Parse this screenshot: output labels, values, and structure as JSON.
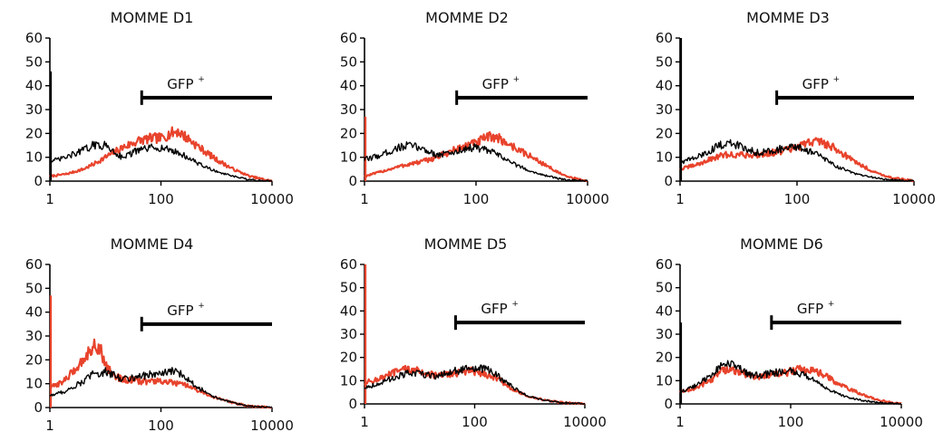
{
  "colors": {
    "control": "#000000",
    "momme": "#e8432c",
    "axis": "#000000"
  },
  "gate_label": {
    "text": "GFP",
    "sup": "+"
  },
  "chart_data": [
    {
      "type": "line",
      "title": "MOMME D1",
      "xscale": "log",
      "xticks": [
        "1",
        "100",
        "10000"
      ],
      "yticks": [
        "0",
        "10",
        "20",
        "30",
        "40",
        "50",
        "60"
      ],
      "xlim": [
        1,
        10000
      ],
      "ylim": [
        0,
        60
      ],
      "gate": [
        45,
        10000
      ],
      "series": [
        {
          "color": "black",
          "x": [
            1,
            2,
            4,
            6,
            10,
            20,
            40,
            70,
            100,
            150,
            200,
            300,
            500,
            1000,
            2000,
            4000,
            10000
          ],
          "y": [
            8,
            10,
            13,
            15,
            15,
            10,
            13,
            14,
            14,
            13,
            12,
            10,
            7,
            4,
            2,
            0.5,
            0
          ],
          "start_spike": 46
        },
        {
          "color": "red",
          "x": [
            1,
            2,
            4,
            6,
            10,
            20,
            40,
            70,
            100,
            150,
            200,
            300,
            500,
            1000,
            2000,
            4000,
            10000
          ],
          "y": [
            2,
            3,
            5,
            7,
            10,
            14,
            17,
            18,
            18,
            20,
            21,
            18,
            14,
            9,
            5,
            2,
            0
          ],
          "start_spike": 0
        }
      ]
    },
    {
      "type": "line",
      "title": "MOMME D2",
      "xscale": "log",
      "xticks": [
        "1",
        "100",
        "10000"
      ],
      "yticks": [
        "0",
        "10",
        "20",
        "30",
        "40",
        "50",
        "60"
      ],
      "xlim": [
        1,
        10000
      ],
      "ylim": [
        0,
        60
      ],
      "gate": [
        45,
        10000
      ],
      "series": [
        {
          "color": "black",
          "x": [
            1,
            2,
            4,
            6,
            10,
            20,
            40,
            70,
            100,
            150,
            200,
            300,
            500,
            1000,
            2000,
            4000,
            10000
          ],
          "y": [
            9,
            11,
            14,
            15,
            14,
            11,
            12,
            14,
            14,
            13,
            12,
            10,
            7,
            4,
            2,
            0.5,
            0
          ],
          "start_spike": 0
        },
        {
          "color": "red",
          "x": [
            1,
            2,
            4,
            6,
            10,
            20,
            40,
            70,
            100,
            150,
            200,
            300,
            500,
            1000,
            2000,
            4000,
            10000
          ],
          "y": [
            2,
            4,
            6,
            7,
            8,
            10,
            13,
            15,
            16,
            18,
            19,
            17,
            14,
            10,
            6,
            2,
            0
          ],
          "start_spike": 27
        }
      ]
    },
    {
      "type": "line",
      "title": "MOMME D3",
      "xscale": "log",
      "xticks": [
        "1",
        "100",
        "10000"
      ],
      "yticks": [
        "0",
        "10",
        "20",
        "30",
        "40",
        "50",
        "60"
      ],
      "xlim": [
        1,
        10000
      ],
      "ylim": [
        0,
        60
      ],
      "gate": [
        45,
        10000
      ],
      "series": [
        {
          "color": "black",
          "x": [
            1,
            2,
            4,
            6,
            10,
            20,
            40,
            70,
            100,
            150,
            200,
            300,
            500,
            1000,
            2000,
            4000,
            10000
          ],
          "y": [
            8,
            10,
            14,
            16,
            15,
            12,
            13,
            14,
            14,
            13,
            12,
            9,
            6,
            3,
            1.5,
            0.5,
            0
          ],
          "start_spike": 60
        },
        {
          "color": "red",
          "x": [
            1,
            2,
            4,
            6,
            10,
            20,
            40,
            70,
            100,
            150,
            200,
            300,
            500,
            1000,
            2000,
            4000,
            10000
          ],
          "y": [
            5,
            7,
            10,
            11,
            11,
            11,
            12,
            13,
            14,
            16,
            17,
            16,
            13,
            8,
            4,
            1.5,
            0
          ],
          "start_spike": 0
        }
      ]
    },
    {
      "type": "line",
      "title": "MOMME D4",
      "xscale": "log",
      "xticks": [
        "1",
        "100",
        "10000"
      ],
      "yticks": [
        "0",
        "10",
        "20",
        "30",
        "40",
        "50",
        "60"
      ],
      "xlim": [
        1,
        10000
      ],
      "ylim": [
        0,
        60
      ],
      "gate": [
        45,
        10000
      ],
      "series": [
        {
          "color": "black",
          "x": [
            1,
            2,
            4,
            6,
            10,
            20,
            40,
            70,
            100,
            150,
            200,
            300,
            500,
            1000,
            2000,
            4000,
            10000
          ],
          "y": [
            5,
            7,
            11,
            14,
            15,
            12,
            13,
            14,
            14,
            15,
            15,
            12,
            8,
            4,
            2,
            0.5,
            0
          ],
          "start_spike": 0
        },
        {
          "color": "red",
          "x": [
            1,
            2,
            4,
            6,
            8,
            10,
            15,
            20,
            40,
            70,
            100,
            200,
            300,
            500,
            1000,
            2000,
            4000,
            10000
          ],
          "y": [
            8,
            12,
            20,
            26,
            25,
            18,
            13,
            12,
            11,
            11,
            11,
            10,
            9,
            7,
            4,
            2,
            0.5,
            0
          ],
          "start_spike": 47
        }
      ]
    },
    {
      "type": "line",
      "title": "MOMME D5",
      "xscale": "log",
      "xticks": [
        "1",
        "100",
        "10000"
      ],
      "yticks": [
        "0",
        "10",
        "20",
        "30",
        "40",
        "50",
        "60"
      ],
      "xlim": [
        1,
        10000
      ],
      "ylim": [
        0,
        60
      ],
      "gate": [
        45,
        10000
      ],
      "series": [
        {
          "color": "black",
          "x": [
            1,
            2,
            4,
            6,
            10,
            20,
            40,
            70,
            100,
            150,
            200,
            300,
            500,
            1000,
            2000,
            4000,
            10000
          ],
          "y": [
            7,
            9,
            12,
            13,
            13,
            12,
            14,
            15,
            15,
            15,
            14,
            11,
            7,
            3,
            1.5,
            0.5,
            0
          ],
          "start_spike": 0
        },
        {
          "color": "red",
          "x": [
            1,
            2,
            4,
            6,
            10,
            20,
            40,
            70,
            100,
            150,
            200,
            300,
            500,
            1000,
            2000,
            4000,
            10000
          ],
          "y": [
            9,
            11,
            14,
            15,
            14,
            12,
            13,
            14,
            14,
            13,
            12,
            10,
            6,
            3,
            1.5,
            0.5,
            0
          ],
          "start_spike": 60
        }
      ]
    },
    {
      "type": "line",
      "title": "MOMME D6",
      "xscale": "log",
      "xticks": [
        "1",
        "100",
        "10000"
      ],
      "yticks": [
        "0",
        "10",
        "20",
        "30",
        "40",
        "50",
        "60"
      ],
      "xlim": [
        1,
        10000
      ],
      "ylim": [
        0,
        60
      ],
      "gate": [
        45,
        10000
      ],
      "series": [
        {
          "color": "black",
          "x": [
            1,
            2,
            4,
            6,
            10,
            20,
            40,
            70,
            100,
            150,
            200,
            300,
            500,
            1000,
            2000,
            4000,
            10000
          ],
          "y": [
            5,
            8,
            13,
            18,
            16,
            12,
            13,
            14,
            14,
            13,
            12,
            9,
            6,
            3,
            1.5,
            0.5,
            0
          ],
          "start_spike": 35
        },
        {
          "color": "red",
          "x": [
            1,
            2,
            4,
            6,
            10,
            20,
            40,
            70,
            100,
            150,
            200,
            300,
            500,
            1000,
            2000,
            4000,
            10000
          ],
          "y": [
            5,
            7,
            11,
            15,
            14,
            12,
            12,
            13,
            14,
            15,
            15,
            14,
            11,
            7,
            4,
            1.5,
            0
          ],
          "start_spike": 0
        }
      ]
    }
  ]
}
